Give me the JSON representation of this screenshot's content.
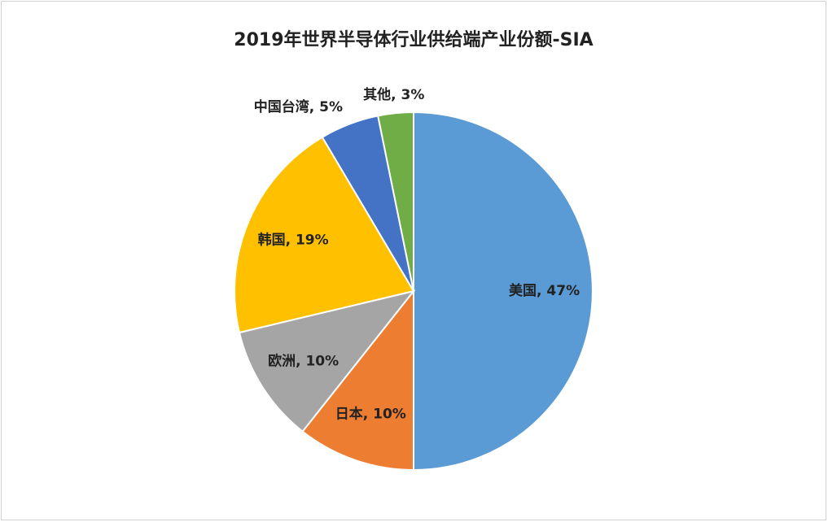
{
  "chart_data": {
    "type": "pie",
    "title": "2019年世界半导体行业供给端产业份额-SIA",
    "values": [
      47,
      10,
      10,
      19,
      5,
      3
    ],
    "value_labels": [
      "美国, 47%",
      "日本, 10%",
      "欧洲, 10%",
      "韩国, 19%",
      "中国台湾, 5%",
      "其他, 3%"
    ],
    "colors": [
      "#5b9bd5",
      "#ed7d31",
      "#a5a5a5",
      "#ffc000",
      "#4472c4",
      "#70ad47"
    ]
  }
}
